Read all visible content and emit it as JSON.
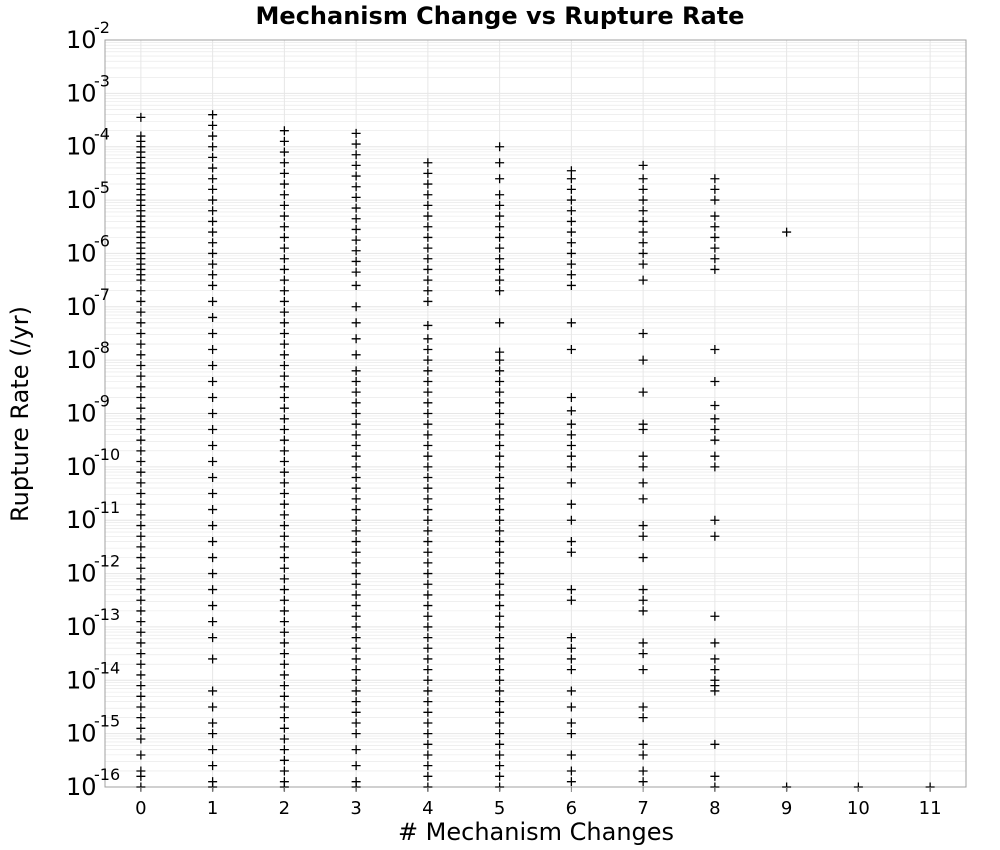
{
  "chart_data": {
    "type": "scatter",
    "title": "Mechanism Change vs Rupture Rate",
    "xlabel": "# Mechanism Changes",
    "ylabel": "Rupture Rate (/yr)",
    "x_ticks": [
      "0",
      "1",
      "2",
      "3",
      "4",
      "5",
      "6",
      "7",
      "8",
      "9",
      "10",
      "11"
    ],
    "y_ticks": [
      {
        "base": "10",
        "exp": "-2"
      },
      {
        "base": "10",
        "exp": "-3"
      },
      {
        "base": "10",
        "exp": "-4"
      },
      {
        "base": "10",
        "exp": "-5"
      },
      {
        "base": "10",
        "exp": "-6"
      },
      {
        "base": "10",
        "exp": "-7"
      },
      {
        "base": "10",
        "exp": "-8"
      },
      {
        "base": "10",
        "exp": "-9"
      },
      {
        "base": "10",
        "exp": "-10"
      },
      {
        "base": "10",
        "exp": "-11"
      },
      {
        "base": "10",
        "exp": "-12"
      },
      {
        "base": "10",
        "exp": "-13"
      },
      {
        "base": "10",
        "exp": "-14"
      },
      {
        "base": "10",
        "exp": "-15"
      },
      {
        "base": "10",
        "exp": "-16"
      }
    ],
    "xlim": [
      -0.5,
      11.5
    ],
    "y_scale": "log",
    "ylim_log10": [
      -16,
      -2
    ],
    "grid": true,
    "marker": "plus",
    "marker_color": "#000000",
    "grid_color": "#e6e6e6",
    "series": [
      {
        "x": 0,
        "log10_y": [
          -3.45,
          -3.8,
          -3.9,
          -4.0,
          -4.1,
          -4.2,
          -4.3,
          -4.4,
          -4.5,
          -4.6,
          -4.7,
          -4.8,
          -4.9,
          -5.0,
          -5.1,
          -5.2,
          -5.3,
          -5.4,
          -5.5,
          -5.6,
          -5.7,
          -5.8,
          -5.9,
          -6.0,
          -6.1,
          -6.2,
          -6.3,
          -6.4,
          -6.5,
          -6.7,
          -6.9,
          -7.1,
          -7.3,
          -7.5,
          -7.7,
          -7.9,
          -8.1,
          -8.3,
          -8.5,
          -8.7,
          -8.9,
          -9.1,
          -9.3,
          -9.5,
          -9.7,
          -9.9,
          -10.1,
          -10.3,
          -10.5,
          -10.7,
          -10.9,
          -11.1,
          -11.3,
          -11.5,
          -11.7,
          -11.9,
          -12.1,
          -12.3,
          -12.5,
          -12.7,
          -12.9,
          -13.1,
          -13.3,
          -13.5,
          -13.7,
          -13.9,
          -14.1,
          -14.3,
          -14.5,
          -14.7,
          -14.9,
          -15.1,
          -15.4,
          -15.7,
          -15.8,
          -16.0
        ]
      },
      {
        "x": 1,
        "log10_y": [
          -3.4,
          -3.6,
          -3.8,
          -4.0,
          -4.2,
          -4.4,
          -4.6,
          -4.8,
          -5.0,
          -5.2,
          -5.4,
          -5.6,
          -5.8,
          -6.0,
          -6.2,
          -6.4,
          -6.6,
          -6.9,
          -7.2,
          -7.5,
          -7.8,
          -8.1,
          -8.4,
          -8.7,
          -9.0,
          -9.3,
          -9.6,
          -9.9,
          -10.2,
          -10.5,
          -10.8,
          -11.1,
          -11.4,
          -11.7,
          -12.0,
          -12.3,
          -12.6,
          -12.9,
          -13.2,
          -13.6,
          -14.2,
          -14.5,
          -14.8,
          -15.0,
          -15.3,
          -15.6,
          -15.9,
          -16.0
        ]
      },
      {
        "x": 2,
        "log10_y": [
          -3.7,
          -3.9,
          -4.1,
          -4.3,
          -4.5,
          -4.7,
          -4.9,
          -5.1,
          -5.3,
          -5.5,
          -5.7,
          -5.9,
          -6.1,
          -6.3,
          -6.5,
          -6.7,
          -6.9,
          -7.1,
          -7.3,
          -7.5,
          -7.7,
          -7.9,
          -8.1,
          -8.3,
          -8.5,
          -8.7,
          -8.9,
          -9.1,
          -9.3,
          -9.5,
          -9.7,
          -9.9,
          -10.1,
          -10.3,
          -10.5,
          -10.7,
          -10.9,
          -11.1,
          -11.3,
          -11.5,
          -11.7,
          -11.9,
          -12.1,
          -12.3,
          -12.5,
          -12.7,
          -12.9,
          -13.1,
          -13.3,
          -13.5,
          -13.7,
          -13.9,
          -14.1,
          -14.3,
          -14.5,
          -14.7,
          -14.9,
          -15.1,
          -15.3,
          -15.5,
          -15.7,
          -15.9,
          -16.0
        ]
      },
      {
        "x": 3,
        "log10_y": [
          -3.75,
          -3.95,
          -4.15,
          -4.35,
          -4.55,
          -4.75,
          -4.95,
          -5.15,
          -5.35,
          -5.55,
          -5.75,
          -5.95,
          -6.15,
          -6.35,
          -6.6,
          -7.0,
          -7.3,
          -7.6,
          -7.9,
          -8.2,
          -8.4,
          -8.6,
          -8.8,
          -9.0,
          -9.2,
          -9.4,
          -9.6,
          -9.8,
          -10.0,
          -10.2,
          -10.4,
          -10.6,
          -10.8,
          -11.0,
          -11.2,
          -11.4,
          -11.6,
          -11.8,
          -12.0,
          -12.2,
          -12.4,
          -12.6,
          -12.8,
          -13.0,
          -13.2,
          -13.4,
          -13.6,
          -13.8,
          -14.0,
          -14.2,
          -14.4,
          -14.6,
          -14.8,
          -15.0,
          -15.3,
          -15.6,
          -15.9,
          -16.0
        ]
      },
      {
        "x": 4,
        "log10_y": [
          -4.3,
          -4.5,
          -4.7,
          -4.9,
          -5.1,
          -5.3,
          -5.5,
          -5.7,
          -5.9,
          -6.1,
          -6.3,
          -6.5,
          -6.7,
          -6.9,
          -7.35,
          -7.6,
          -7.8,
          -8.0,
          -8.2,
          -8.4,
          -8.6,
          -8.8,
          -9.0,
          -9.2,
          -9.4,
          -9.6,
          -9.8,
          -10.0,
          -10.2,
          -10.4,
          -10.6,
          -10.8,
          -11.0,
          -11.2,
          -11.4,
          -11.6,
          -11.8,
          -12.0,
          -12.2,
          -12.4,
          -12.6,
          -12.8,
          -13.0,
          -13.2,
          -13.4,
          -13.6,
          -13.8,
          -14.0,
          -14.2,
          -14.4,
          -14.6,
          -14.8,
          -15.0,
          -15.2,
          -15.4,
          -15.6,
          -15.8,
          -16.0
        ]
      },
      {
        "x": 5,
        "log10_y": [
          -4.0,
          -4.3,
          -4.6,
          -4.9,
          -5.1,
          -5.3,
          -5.5,
          -5.7,
          -5.9,
          -6.1,
          -6.3,
          -6.5,
          -6.7,
          -7.3,
          -7.85,
          -8.0,
          -8.2,
          -8.4,
          -8.6,
          -8.8,
          -9.0,
          -9.2,
          -9.4,
          -9.6,
          -9.8,
          -10.0,
          -10.2,
          -10.4,
          -10.6,
          -10.8,
          -11.0,
          -11.2,
          -11.4,
          -11.6,
          -11.8,
          -12.0,
          -12.2,
          -12.4,
          -12.6,
          -12.8,
          -13.0,
          -13.2,
          -13.4,
          -13.6,
          -13.8,
          -14.0,
          -14.2,
          -14.4,
          -14.6,
          -14.8,
          -15.0,
          -15.2,
          -15.4,
          -15.6,
          -15.8,
          -16.0
        ]
      },
      {
        "x": 6,
        "log10_y": [
          -4.45,
          -4.6,
          -4.8,
          -5.0,
          -5.2,
          -5.4,
          -5.6,
          -5.8,
          -6.0,
          -6.2,
          -6.4,
          -6.6,
          -7.3,
          -7.8,
          -8.7,
          -8.95,
          -9.2,
          -9.4,
          -9.6,
          -9.8,
          -10.0,
          -10.3,
          -10.7,
          -11.0,
          -11.4,
          -11.6,
          -12.3,
          -12.5,
          -13.2,
          -13.4,
          -13.6,
          -13.8,
          -14.2,
          -14.5,
          -14.8,
          -15.0,
          -15.4,
          -15.7,
          -15.9
        ]
      },
      {
        "x": 7,
        "log10_y": [
          -4.35,
          -4.6,
          -4.8,
          -5.0,
          -5.2,
          -5.4,
          -5.6,
          -5.8,
          -6.0,
          -6.2,
          -6.5,
          -7.5,
          -8.0,
          -8.6,
          -9.2,
          -9.3,
          -9.8,
          -10.0,
          -10.3,
          -10.6,
          -11.1,
          -11.3,
          -11.7,
          -12.3,
          -12.5,
          -12.7,
          -13.3,
          -13.5,
          -13.8,
          -14.5,
          -14.7,
          -15.2,
          -15.4,
          -15.7,
          -15.9
        ]
      },
      {
        "x": 8,
        "log10_y": [
          -4.6,
          -4.8,
          -5.0,
          -5.3,
          -5.5,
          -5.7,
          -5.9,
          -6.1,
          -6.3,
          -7.8,
          -8.4,
          -8.85,
          -9.1,
          -9.3,
          -9.5,
          -9.8,
          -10.0,
          -11.0,
          -11.3,
          -12.8,
          -13.3,
          -13.6,
          -13.8,
          -14.0,
          -14.1,
          -14.2,
          -15.2,
          -15.8,
          -16.0
        ]
      },
      {
        "x": 9,
        "log10_y": [
          -5.6,
          -16.0
        ]
      },
      {
        "x": 10,
        "log10_y": [
          -16.0
        ]
      },
      {
        "x": 11,
        "log10_y": [
          -16.0
        ]
      }
    ]
  }
}
